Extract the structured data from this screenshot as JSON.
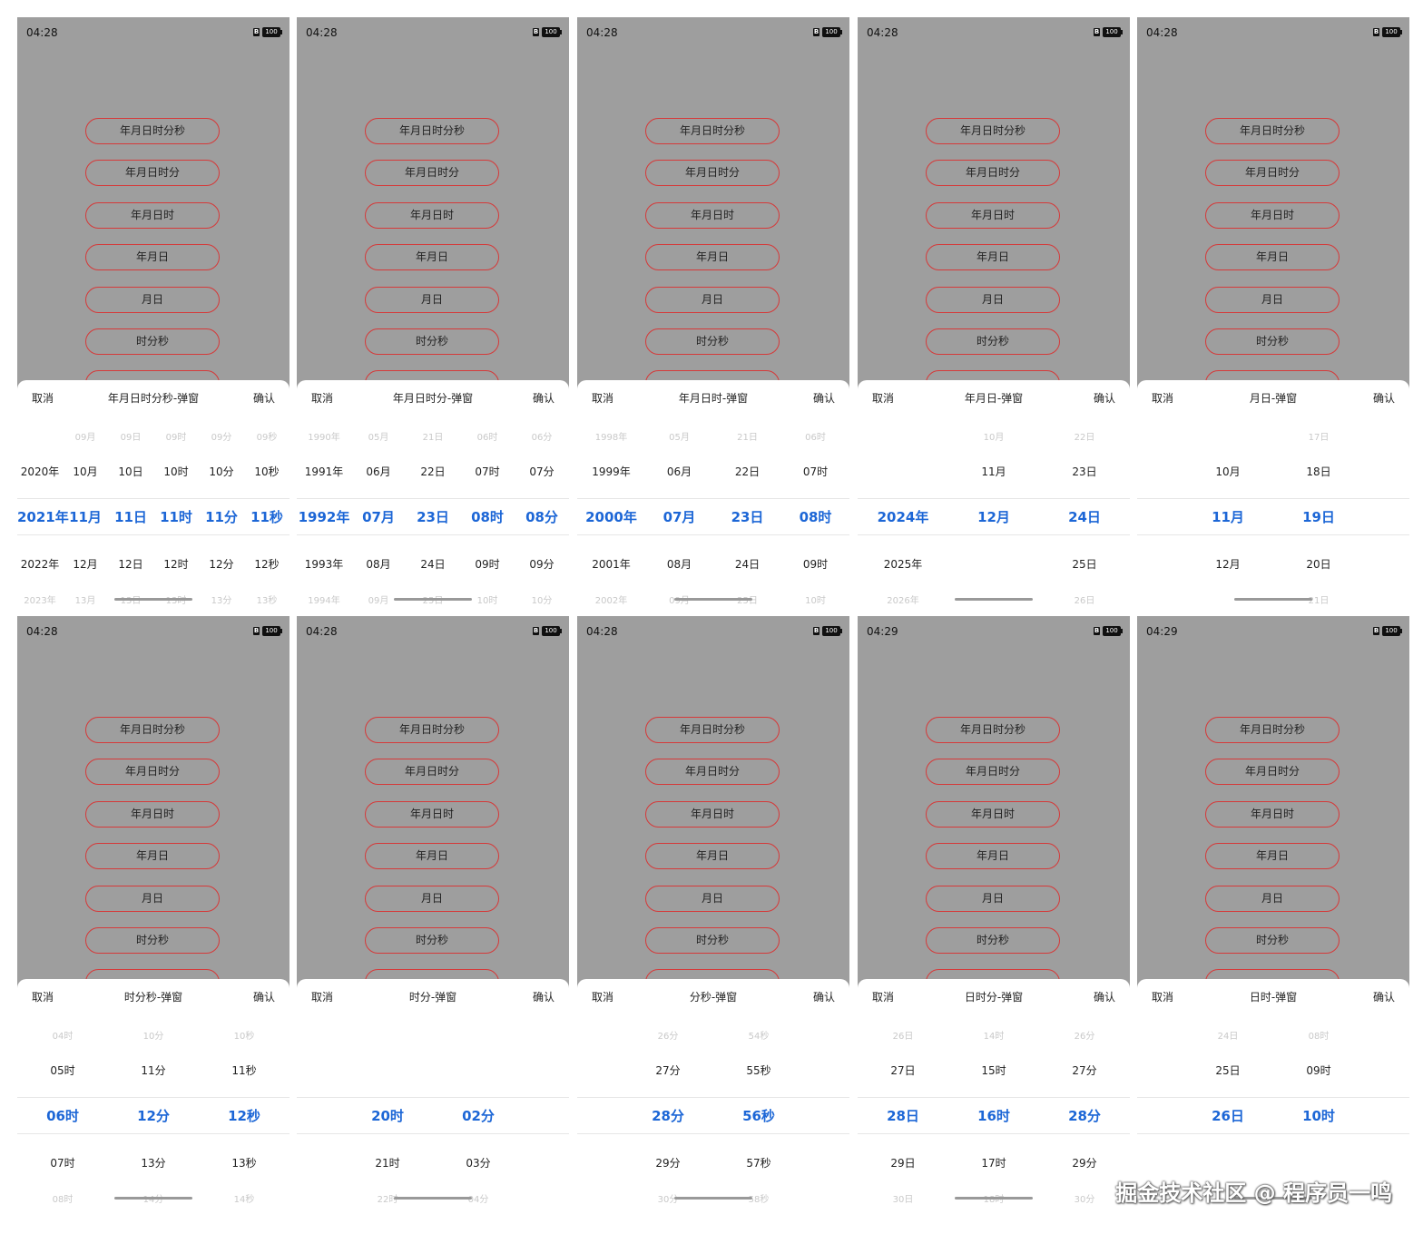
{
  "buttons": [
    "年月日时分秒",
    "年月日时分",
    "年月日时",
    "年月日",
    "月日",
    "时分秒"
  ],
  "cancel": "取消",
  "confirm": "确认",
  "watermark": "掘金技术社区 @ 程序员一鸣",
  "accent_color": "#1c66d6",
  "button_border_color": "#d53a3a",
  "screens": [
    {
      "time": "04:28",
      "battery": "100",
      "title": "年月日时分秒-弹窗",
      "cols": [
        [
          "",
          "2020年",
          "2021年",
          "2022年",
          "2023年"
        ],
        [
          "09月",
          "10月",
          "11月",
          "12月",
          "13月"
        ],
        [
          "09日",
          "10日",
          "11日",
          "12日",
          "13日"
        ],
        [
          "09时",
          "10时",
          "11时",
          "12时",
          "13时"
        ],
        [
          "09分",
          "10分",
          "11分",
          "12分",
          "13分"
        ],
        [
          "09秒",
          "10秒",
          "11秒",
          "12秒",
          "13秒"
        ]
      ]
    },
    {
      "time": "04:28",
      "battery": "100",
      "title": "年月日时分-弹窗",
      "cols": [
        [
          "1990年",
          "1991年",
          "1992年",
          "1993年",
          "1994年"
        ],
        [
          "05月",
          "06月",
          "07月",
          "08月",
          "09月"
        ],
        [
          "21日",
          "22日",
          "23日",
          "24日",
          "25日"
        ],
        [
          "06时",
          "07时",
          "08时",
          "09时",
          "10时"
        ],
        [
          "06分",
          "07分",
          "08分",
          "09分",
          "10分"
        ]
      ]
    },
    {
      "time": "04:28",
      "battery": "100",
      "title": "年月日时-弹窗",
      "cols": [
        [
          "1998年",
          "1999年",
          "2000年",
          "2001年",
          "2002年"
        ],
        [
          "05月",
          "06月",
          "07月",
          "08月",
          "09月"
        ],
        [
          "21日",
          "22日",
          "23日",
          "24日",
          "25日"
        ],
        [
          "06时",
          "07时",
          "08时",
          "09时",
          "10时"
        ]
      ]
    },
    {
      "time": "04:28",
      "battery": "100",
      "title": "年月日-弹窗",
      "cols": [
        [
          "",
          "",
          "2024年",
          "2025年",
          "2026年"
        ],
        [
          "10月",
          "11月",
          "12月",
          "",
          ""
        ],
        [
          "22日",
          "23日",
          "24日",
          "25日",
          "26日"
        ]
      ]
    },
    {
      "time": "04:28",
      "battery": "100",
      "title": "月日-弹窗",
      "cols": [
        [
          "",
          "10月",
          "11月",
          "12月",
          ""
        ],
        [
          "17日",
          "18日",
          "19日",
          "20日",
          "21日"
        ]
      ]
    },
    {
      "time": "04:28",
      "battery": "100",
      "title": "时分秒-弹窗",
      "cols": [
        [
          "04时",
          "05时",
          "06时",
          "07时",
          "08时"
        ],
        [
          "10分",
          "11分",
          "12分",
          "13分",
          "14分"
        ],
        [
          "10秒",
          "11秒",
          "12秒",
          "13秒",
          "14秒"
        ]
      ]
    },
    {
      "time": "04:28",
      "battery": "100",
      "title": "时分-弹窗",
      "cols": [
        [
          "",
          "",
          "20时",
          "21时",
          "22时"
        ],
        [
          "",
          "",
          "02分",
          "03分",
          "04分"
        ]
      ]
    },
    {
      "time": "04:28",
      "battery": "100",
      "title": "分秒-弹窗",
      "cols": [
        [
          "26分",
          "27分",
          "28分",
          "29分",
          "30分"
        ],
        [
          "54秒",
          "55秒",
          "56秒",
          "57秒",
          "58秒"
        ]
      ]
    },
    {
      "time": "04:29",
      "battery": "100",
      "title": "日时分-弹窗",
      "cols": [
        [
          "26日",
          "27日",
          "28日",
          "29日",
          "30日"
        ],
        [
          "14时",
          "15时",
          "16时",
          "17时",
          "18时"
        ],
        [
          "26分",
          "27分",
          "28分",
          "29分",
          "30分"
        ]
      ]
    },
    {
      "time": "04:29",
      "battery": "100",
      "title": "日时-弹窗",
      "cols": [
        [
          "24日",
          "25日",
          "26日",
          "",
          ""
        ],
        [
          "08时",
          "09时",
          "10时",
          "",
          ""
        ]
      ]
    }
  ]
}
